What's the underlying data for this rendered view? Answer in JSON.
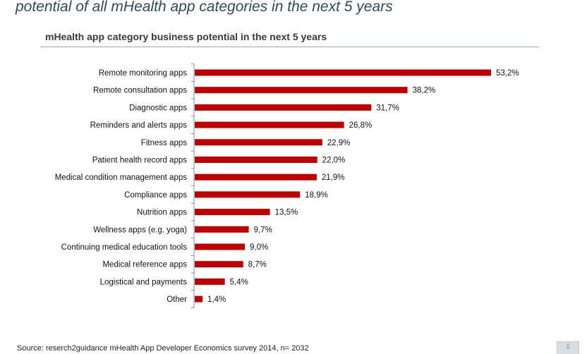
{
  "page": {
    "heading": "potential of all mHealth app categories in the next 5 years",
    "source": "Source: reserch2guidance mHealth App Developer Economics survey 2014, n= 2032",
    "corner_icon": "download-icon"
  },
  "colors": {
    "bar": "#c00000",
    "title_rule": "#8aaebc",
    "heading": "#2b4a5c"
  },
  "chart_data": {
    "type": "bar",
    "orientation": "horizontal",
    "title": "mHealth app category business potential in the next 5 years",
    "xlabel": "",
    "ylabel": "",
    "xlim": [
      0,
      53.2
    ],
    "grid": false,
    "legend": "none",
    "categories": [
      "Remote monitoring apps",
      "Remote consultation apps",
      "Diagnostic apps",
      "Reminders and alerts apps",
      "Fitness apps",
      "Patient health record apps",
      "Medical condition management apps",
      "Compliance apps",
      "Nutrition apps",
      "Wellness apps (e.g. yoga)",
      "Continuing medical education tools",
      "Medical reference apps",
      "Logistical and payments",
      "Other"
    ],
    "values": [
      53.2,
      38.2,
      31.7,
      26.8,
      22.9,
      22.0,
      21.9,
      18.9,
      13.5,
      9.7,
      9.0,
      8.7,
      5.4,
      1.4
    ],
    "labels": [
      "53,2%",
      "38,2%",
      "31,7%",
      "26,8%",
      "22,9%",
      "22,0%",
      "21,9%",
      "18,9%",
      "13,5%",
      "9,7%",
      "9,0%",
      "8,7%",
      "5,4%",
      "1,4%"
    ]
  }
}
